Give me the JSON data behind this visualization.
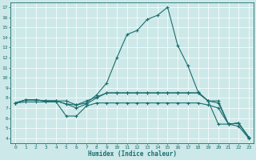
{
  "xlabel": "Humidex (Indice chaleur)",
  "bg_color": "#cde8e8",
  "line_color": "#1a6e6e",
  "grid_color": "#ffffff",
  "xlim": [
    -0.5,
    23.5
  ],
  "ylim": [
    3.5,
    17.5
  ],
  "xticks": [
    0,
    1,
    2,
    3,
    4,
    5,
    6,
    7,
    8,
    9,
    10,
    11,
    12,
    13,
    14,
    15,
    16,
    17,
    18,
    19,
    20,
    21,
    22,
    23
  ],
  "yticks": [
    4,
    5,
    6,
    7,
    8,
    9,
    10,
    11,
    12,
    13,
    14,
    15,
    16,
    17
  ],
  "line1_x": [
    0,
    1,
    2,
    3,
    4,
    5,
    6,
    7,
    8,
    9,
    10,
    11,
    12,
    13,
    14,
    15,
    16,
    17,
    18,
    19,
    20,
    21,
    22,
    23
  ],
  "line1_y": [
    7.5,
    7.8,
    7.8,
    7.7,
    7.7,
    7.7,
    7.3,
    7.5,
    8.3,
    9.5,
    12.0,
    14.3,
    14.7,
    15.8,
    16.2,
    17.0,
    13.2,
    11.2,
    8.6,
    7.7,
    5.4,
    5.4,
    5.5,
    4.1
  ],
  "line2_x": [
    0,
    1,
    2,
    3,
    4,
    5,
    6,
    7,
    8,
    9,
    10,
    11,
    12,
    13,
    14,
    15,
    16,
    17,
    18,
    19,
    20,
    21,
    22,
    23
  ],
  "line2_y": [
    7.5,
    7.8,
    7.8,
    7.7,
    7.7,
    7.4,
    7.3,
    7.7,
    8.1,
    8.5,
    8.5,
    8.5,
    8.5,
    8.5,
    8.5,
    8.5,
    8.5,
    8.5,
    8.5,
    7.7,
    7.7,
    5.4,
    5.5,
    4.1
  ],
  "line3_x": [
    0,
    1,
    2,
    3,
    4,
    5,
    6,
    7,
    8,
    9,
    10,
    11,
    12,
    13,
    14,
    15,
    16,
    17,
    18,
    19,
    20,
    21,
    22,
    23
  ],
  "line3_y": [
    7.5,
    7.8,
    7.8,
    7.7,
    7.7,
    7.4,
    7.0,
    7.4,
    8.0,
    8.5,
    8.5,
    8.5,
    8.5,
    8.5,
    8.5,
    8.5,
    8.5,
    8.5,
    8.5,
    7.7,
    7.5,
    5.4,
    5.5,
    4.1
  ],
  "line4_x": [
    0,
    1,
    2,
    3,
    4,
    5,
    6,
    7,
    8,
    9,
    10,
    11,
    12,
    13,
    14,
    15,
    16,
    17,
    18,
    19,
    20,
    21,
    22,
    23
  ],
  "line4_y": [
    7.5,
    7.6,
    7.6,
    7.6,
    7.6,
    6.2,
    6.2,
    7.2,
    7.5,
    7.5,
    7.5,
    7.5,
    7.5,
    7.5,
    7.5,
    7.5,
    7.5,
    7.5,
    7.5,
    7.3,
    7.0,
    5.4,
    5.2,
    4.0
  ]
}
